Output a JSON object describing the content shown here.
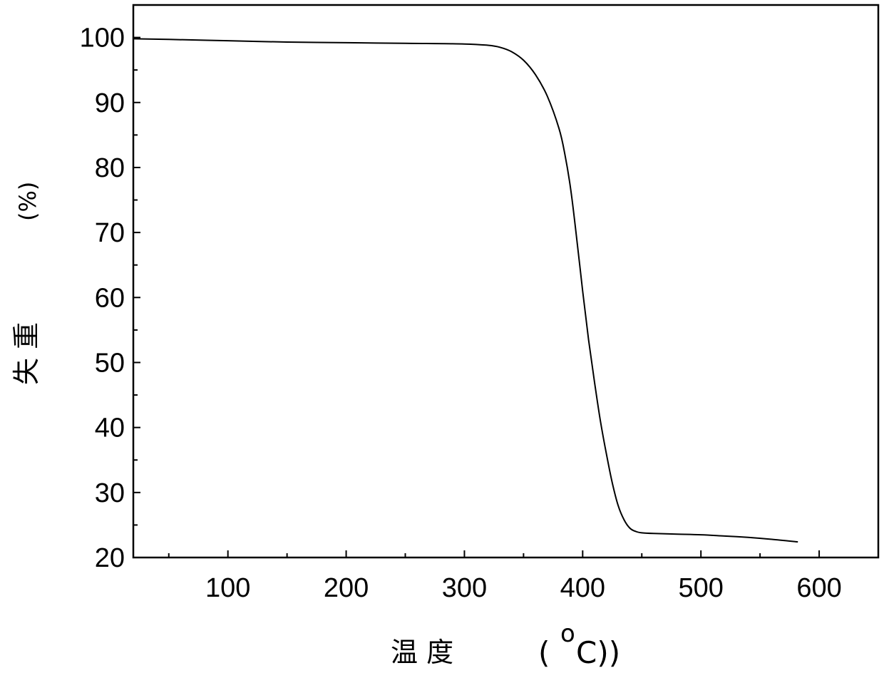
{
  "chart_data": {
    "type": "line",
    "title": "",
    "xlabel": "温 度 (oC))",
    "xlabel_parts": {
      "main": "温  度",
      "open": "(",
      "sup": "o",
      "unit": "C))"
    },
    "ylabel": "失 重 (%)",
    "ylabel_parts": {
      "main": "失  重",
      "unit": "(%)"
    },
    "xlim": [
      20,
      650
    ],
    "ylim": [
      20,
      105
    ],
    "x_ticks": [
      100,
      200,
      300,
      400,
      500,
      600
    ],
    "x_minor_ticks": [
      50,
      150,
      250,
      350,
      450,
      550,
      650
    ],
    "y_ticks": [
      20,
      30,
      40,
      50,
      60,
      70,
      80,
      90,
      100
    ],
    "y_minor_ticks": [
      25,
      35,
      45,
      55,
      65,
      75,
      85,
      95
    ],
    "grid": false,
    "line_color": "#000000",
    "series": [
      {
        "x": [
          20,
          50,
          100,
          150,
          200,
          250,
          300,
          320,
          330,
          340,
          350,
          360,
          370,
          380,
          385,
          390,
          395,
          400,
          405,
          410,
          415,
          420,
          425,
          430,
          435,
          440,
          445,
          450,
          460,
          480,
          500,
          520,
          540,
          560,
          582
        ],
        "y": [
          99.8,
          99.7,
          99.5,
          99.3,
          99.2,
          99.1,
          99.0,
          98.8,
          98.5,
          97.8,
          96.5,
          94.3,
          91.0,
          86.0,
          82.0,
          76.5,
          69.0,
          61.0,
          53.5,
          47.0,
          41.0,
          36.0,
          31.5,
          28.0,
          25.8,
          24.5,
          24.0,
          23.8,
          23.7,
          23.6,
          23.5,
          23.3,
          23.1,
          22.8,
          22.4
        ]
      }
    ]
  }
}
